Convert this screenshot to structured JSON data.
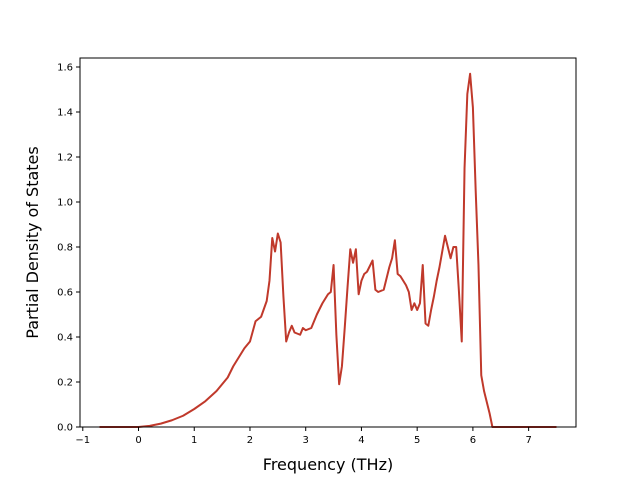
{
  "chart_data": {
    "type": "line",
    "xlabel": "Frequency (THz)",
    "ylabel": "Partial Density of States",
    "xlim": [
      -1.05,
      7.85
    ],
    "ylim": [
      0.0,
      1.64
    ],
    "xticks": [
      -1,
      0,
      1,
      2,
      3,
      4,
      5,
      6,
      7
    ],
    "xtick_labels": [
      "−1",
      "0",
      "1",
      "2",
      "3",
      "4",
      "5",
      "6",
      "7"
    ],
    "yticks": [
      0.0,
      0.2,
      0.4,
      0.6,
      0.8,
      1.0,
      1.2,
      1.4,
      1.6
    ],
    "ytick_labels": [
      "0.0",
      "0.2",
      "0.4",
      "0.6",
      "0.8",
      "1.0",
      "1.2",
      "1.4",
      "1.6"
    ],
    "grid": false,
    "series": [
      {
        "color": "#c0392b",
        "x": [
          -0.7,
          -0.3,
          0.0,
          0.2,
          0.4,
          0.6,
          0.8,
          1.0,
          1.2,
          1.4,
          1.6,
          1.7,
          1.8,
          1.9,
          2.0,
          2.1,
          2.2,
          2.3,
          2.35,
          2.4,
          2.45,
          2.5,
          2.55,
          2.6,
          2.65,
          2.7,
          2.75,
          2.8,
          2.9,
          2.95,
          3.0,
          3.1,
          3.2,
          3.3,
          3.35,
          3.4,
          3.45,
          3.5,
          3.55,
          3.6,
          3.65,
          3.7,
          3.75,
          3.8,
          3.85,
          3.9,
          3.95,
          4.0,
          4.05,
          4.1,
          4.2,
          4.25,
          4.3,
          4.4,
          4.5,
          4.55,
          4.6,
          4.65,
          4.7,
          4.75,
          4.8,
          4.85,
          4.9,
          4.95,
          5.0,
          5.05,
          5.1,
          5.15,
          5.2,
          5.25,
          5.3,
          5.35,
          5.4,
          5.5,
          5.6,
          5.65,
          5.7,
          5.75,
          5.8,
          5.85,
          5.9,
          5.95,
          6.0,
          6.05,
          6.1,
          6.15,
          6.2,
          6.25,
          6.3,
          6.35,
          6.45,
          6.55,
          6.65,
          6.75,
          6.8,
          6.9,
          7.0,
          7.5
        ],
        "y": [
          0.0,
          0.0,
          0.0,
          0.005,
          0.015,
          0.03,
          0.05,
          0.08,
          0.115,
          0.16,
          0.22,
          0.27,
          0.31,
          0.35,
          0.38,
          0.47,
          0.49,
          0.56,
          0.65,
          0.84,
          0.78,
          0.86,
          0.82,
          0.58,
          0.38,
          0.42,
          0.45,
          0.42,
          0.41,
          0.44,
          0.43,
          0.44,
          0.5,
          0.55,
          0.57,
          0.59,
          0.6,
          0.72,
          0.41,
          0.19,
          0.27,
          0.44,
          0.62,
          0.79,
          0.73,
          0.79,
          0.59,
          0.65,
          0.68,
          0.69,
          0.74,
          0.61,
          0.6,
          0.61,
          0.71,
          0.75,
          0.83,
          0.68,
          0.67,
          0.65,
          0.63,
          0.6,
          0.52,
          0.55,
          0.52,
          0.55,
          0.72,
          0.46,
          0.45,
          0.52,
          0.58,
          0.65,
          0.71,
          0.85,
          0.75,
          0.8,
          0.8,
          0.6,
          0.38,
          1.15,
          1.48,
          1.57,
          1.42,
          1.05,
          0.72,
          0.23,
          0.16,
          0.11,
          0.06,
          0.0,
          0.0,
          0.0,
          0.0,
          0.0,
          0.0,
          0.0,
          0.0,
          0.0
        ]
      }
    ]
  }
}
